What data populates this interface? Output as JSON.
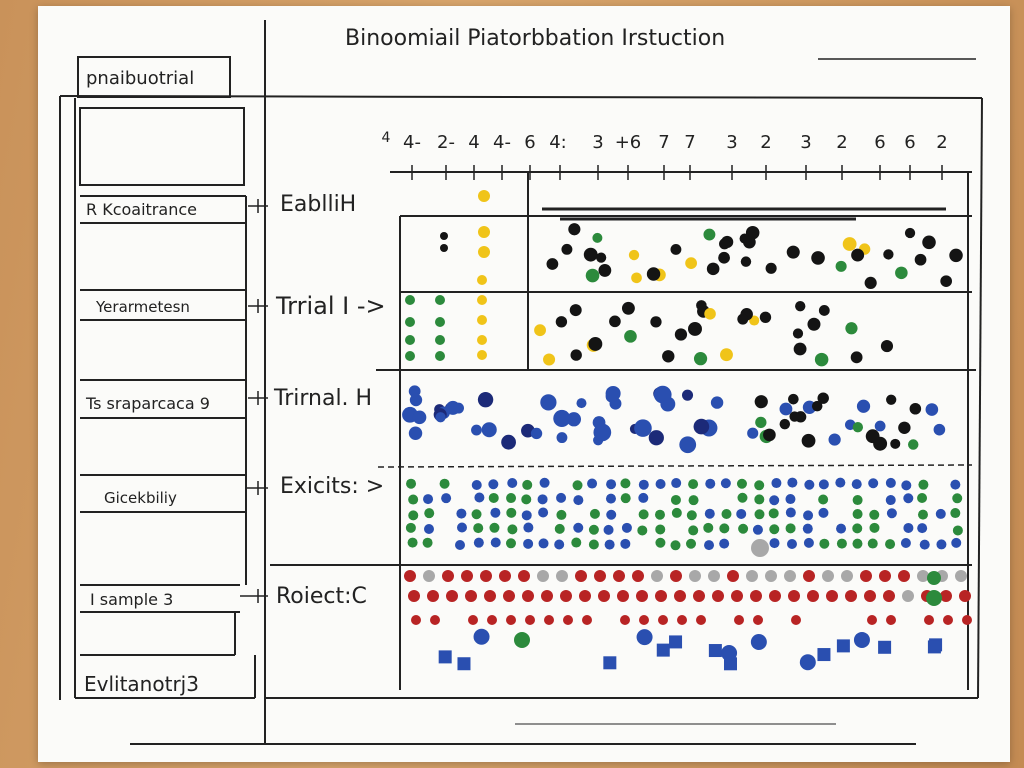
{
  "title": "Binoomiail Piatorbbation Irstuction",
  "left_panel": {
    "header": "pnaibuotrial",
    "items": [
      "R Kcoaitrance",
      "Yerarmetesn",
      "Ts sraparcaca 9",
      "Gicekbiliy",
      "I sample 3"
    ],
    "footer": "Evlitanotrj3"
  },
  "rows": [
    {
      "label": "EablliH"
    },
    {
      "label": "Trrial I ->"
    },
    {
      "label": "Trirnal. H"
    },
    {
      "label": "Exicits: >"
    },
    {
      "label": "Roiect:C"
    }
  ],
  "axis_ticks": [
    "4",
    "4-",
    "2-",
    "4",
    "4-",
    "6",
    "4:",
    "3",
    "+6",
    "7",
    "7",
    "3",
    "2",
    "3",
    "2",
    "6",
    "6",
    "2"
  ],
  "colors": {
    "black": "#141414",
    "yellow": "#f0c419",
    "green": "#2c8a3c",
    "blue": "#2a4fb0",
    "navy": "#1c2a78",
    "red": "#b82424",
    "gray": "#a8a8a8"
  }
}
